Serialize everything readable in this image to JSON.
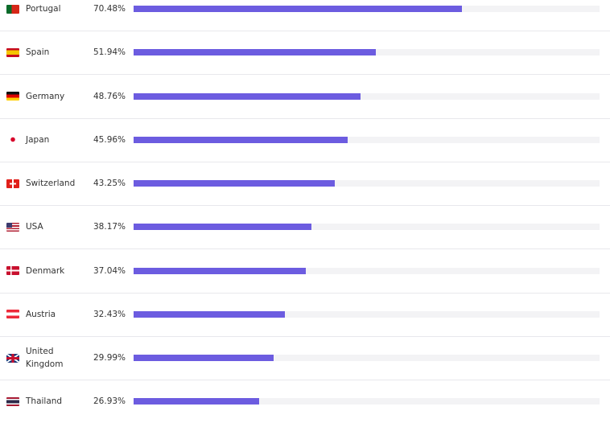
{
  "chart_data": {
    "type": "bar",
    "orientation": "horizontal",
    "categories": [
      "Portugal",
      "Spain",
      "Germany",
      "Japan",
      "Switzerland",
      "USA",
      "Denmark",
      "Austria",
      "United Kingdom",
      "Thailand"
    ],
    "values": [
      70.48,
      51.94,
      48.76,
      45.96,
      43.25,
      38.17,
      37.04,
      32.43,
      29.99,
      26.93
    ],
    "value_labels": [
      "70.48%",
      "51.94%",
      "48.76%",
      "45.96%",
      "43.25%",
      "38.17%",
      "37.04%",
      "32.43%",
      "29.99%",
      "26.93%"
    ],
    "color": "#6c5ce0",
    "track_color": "#f3f3f5",
    "xlim": [
      0,
      100
    ]
  }
}
